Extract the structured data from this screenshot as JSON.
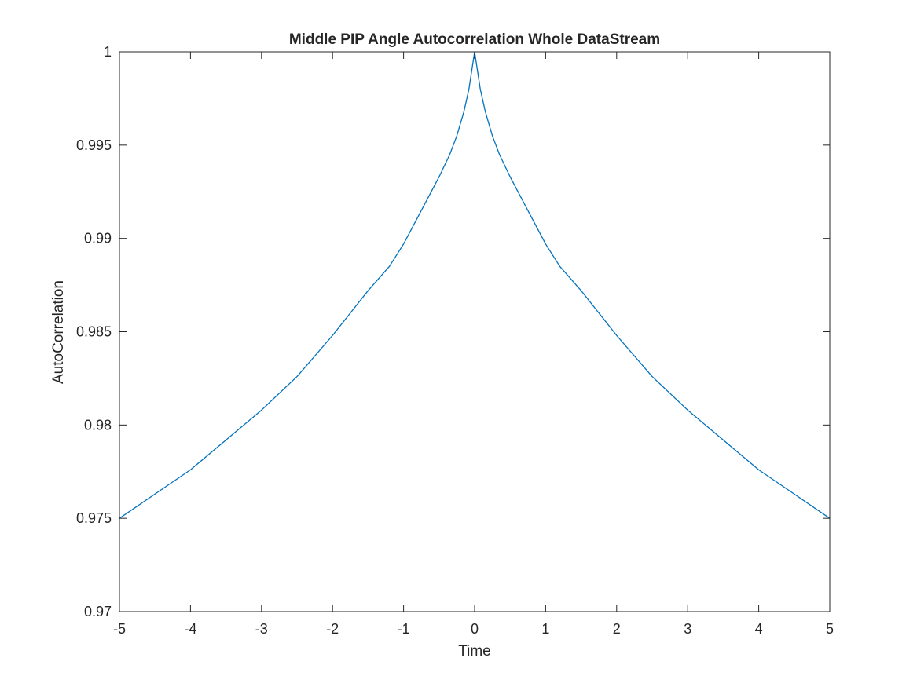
{
  "chart_data": {
    "type": "line",
    "title": "Middle PIP Angle Autocorrelation Whole DataStream",
    "xlabel": "Time",
    "ylabel": "AutoCorrelation",
    "xlim": [
      -5,
      5
    ],
    "ylim": [
      0.97,
      1
    ],
    "grid": false,
    "box": true,
    "line_color": "#0072BD",
    "axis_color": "#262626",
    "x_ticks": [
      -5,
      -4,
      -3,
      -2,
      -1,
      0,
      1,
      2,
      3,
      4,
      5
    ],
    "x_tick_labels": [
      "-5",
      "-4",
      "-3",
      "-2",
      "-1",
      "0",
      "1",
      "2",
      "3",
      "4",
      "5"
    ],
    "y_ticks": [
      0.97,
      0.975,
      0.98,
      0.985,
      0.99,
      0.995,
      1
    ],
    "y_tick_labels": [
      "0.97",
      "0.975",
      "0.98",
      "0.985",
      "0.99",
      "0.995",
      "1"
    ],
    "series": [
      {
        "x": [
          -5,
          -4.5,
          -4,
          -3.5,
          -3,
          -2.5,
          -2,
          -1.5,
          -1.2,
          -1,
          -0.75,
          -0.5,
          -0.35,
          -0.25,
          -0.15,
          -0.08,
          -0.04,
          0,
          0.04,
          0.08,
          0.15,
          0.25,
          0.35,
          0.5,
          0.75,
          1,
          1.2,
          1.5,
          2,
          2.5,
          3,
          3.5,
          4,
          4.5,
          5
        ],
        "y": [
          0.975,
          0.9763,
          0.9776,
          0.9792,
          0.9808,
          0.9826,
          0.9848,
          0.9872,
          0.9885,
          0.9897,
          0.9915,
          0.9933,
          0.9945,
          0.9955,
          0.9968,
          0.998,
          0.999,
          1.0,
          0.999,
          0.998,
          0.9968,
          0.9955,
          0.9945,
          0.9933,
          0.9915,
          0.9897,
          0.9885,
          0.9872,
          0.9848,
          0.9826,
          0.9808,
          0.9792,
          0.9776,
          0.9763,
          0.975
        ]
      }
    ]
  }
}
